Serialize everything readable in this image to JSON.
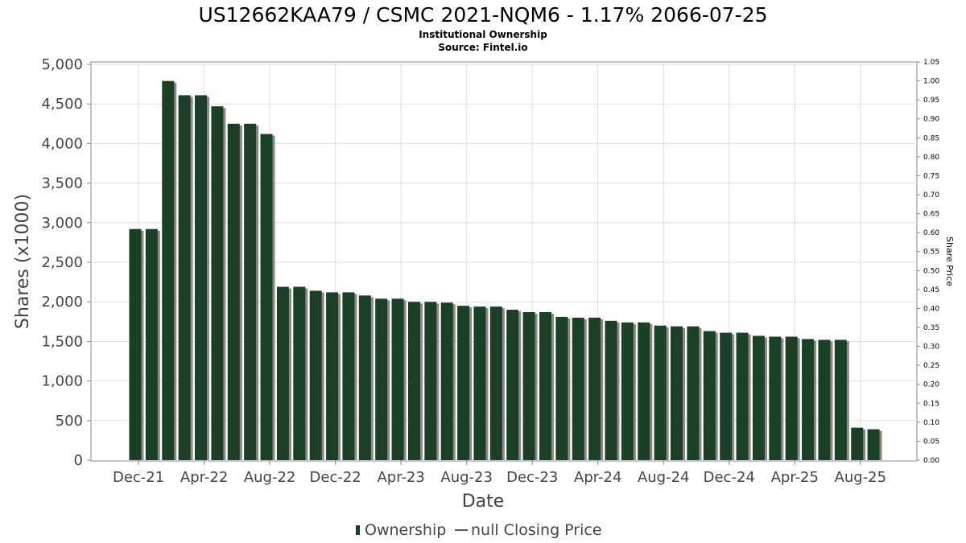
{
  "chart_data": {
    "type": "bar",
    "title": "US12662KAA79 / CSMC 2021-NQM6 - 1.17% 2066-07-25",
    "subtitle": "Institutional Ownership",
    "source": "Source: Fintel.io",
    "xlabel": "Date",
    "ylabel": "Shares (x1000)",
    "y2label": "Share Price",
    "ylim": [
      0,
      5000
    ],
    "y2lim": [
      0,
      1.05
    ],
    "yticks": [
      "0",
      "500",
      "1,000",
      "1,500",
      "2,000",
      "2,500",
      "3,000",
      "3,500",
      "4,000",
      "4,500",
      "5,000"
    ],
    "y2ticks": [
      "0.00",
      "0.05",
      "0.10",
      "0.15",
      "0.20",
      "0.25",
      "0.30",
      "0.35",
      "0.40",
      "0.45",
      "0.50",
      "0.55",
      "0.60",
      "0.65",
      "0.70",
      "0.75",
      "0.80",
      "0.85",
      "0.90",
      "0.95",
      "1.00",
      "1.05"
    ],
    "xticks": [
      "Dec-21",
      "Apr-22",
      "Aug-22",
      "Dec-22",
      "Apr-23",
      "Aug-23",
      "Dec-23",
      "Apr-24",
      "Aug-24",
      "Dec-24",
      "Apr-25",
      "Aug-25"
    ],
    "grid": true,
    "legend_position": "bottom",
    "series": [
      {
        "name": "Ownership",
        "color": "#1c4026",
        "values": [
          2920,
          2920,
          4790,
          4610,
          4610,
          4470,
          4250,
          4250,
          4120,
          2190,
          2190,
          2140,
          2120,
          2120,
          2080,
          2040,
          2040,
          2000,
          2000,
          1990,
          1950,
          1940,
          1940,
          1900,
          1870,
          1870,
          1810,
          1800,
          1800,
          1760,
          1740,
          1740,
          1700,
          1690,
          1690,
          1630,
          1610,
          1610,
          1570,
          1560,
          1560,
          1530,
          1520,
          1520,
          410,
          390
        ]
      },
      {
        "name": "null Closing Price",
        "color": "#555555",
        "values": []
      }
    ]
  }
}
